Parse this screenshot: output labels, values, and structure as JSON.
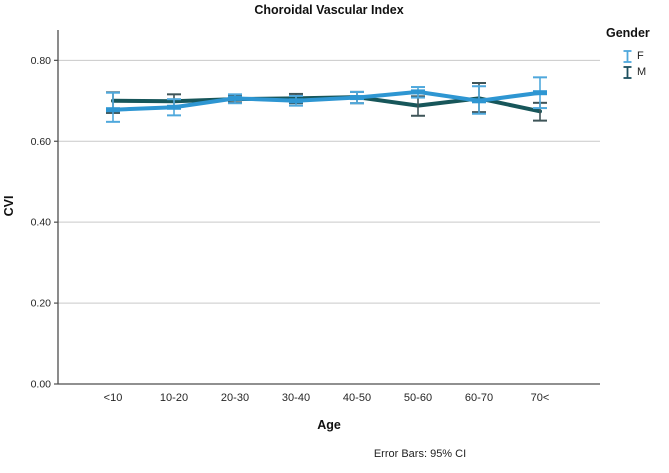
{
  "title": "Choroidal Vascular Index",
  "caption": "Error Bars: 95% CI",
  "axes": {
    "y_label": "CVI",
    "x_label": "Age",
    "y_tick_labels": [
      "0.00",
      "0.20",
      "0.40",
      "0.60",
      "0.80"
    ]
  },
  "legend": {
    "title": "Gender",
    "entries": [
      {
        "label": "F",
        "color": "#4FA8DC"
      },
      {
        "label": "M",
        "color": "#1C4F5E"
      }
    ]
  },
  "colors": {
    "f_line": "#2E96D2",
    "f_error": "#4FA8DC",
    "m_line": "#17565A",
    "m_error": "#3E5458",
    "gridline": "#c9c9c9",
    "axis": "#4d4d4d",
    "tick_text": "#262626"
  },
  "chart_data": {
    "type": "line",
    "title": "Choroidal Vascular Index",
    "xlabel": "Age",
    "ylabel": "CVI",
    "categories": [
      "<10",
      "10-20",
      "20-30",
      "30-40",
      "40-50",
      "50-60",
      "60-70",
      "70<"
    ],
    "ylim": [
      0,
      0.875
    ],
    "y_ticks": [
      0,
      0.2,
      0.4,
      0.6,
      0.8
    ],
    "grid": "horizontal",
    "legend_position": "right",
    "error_bars": "95% CI",
    "series": [
      {
        "name": "M",
        "color": "#17565A",
        "error_color": "#3E5458",
        "values": [
          0.7,
          0.699,
          0.704,
          0.706,
          0.709,
          0.688,
          0.706,
          0.674
        ],
        "ci_low": [
          0.67,
          0.681,
          0.696,
          0.694,
          0.694,
          0.663,
          0.672,
          0.651
        ],
        "ci_high": [
          0.721,
          0.716,
          0.713,
          0.717,
          0.722,
          0.711,
          0.744,
          0.695
        ]
      },
      {
        "name": "F",
        "color": "#2E96D2",
        "error_color": "#4FA8DC",
        "values": [
          0.678,
          0.684,
          0.706,
          0.7,
          0.708,
          0.722,
          0.7,
          0.72
        ],
        "ci_low": [
          0.648,
          0.664,
          0.694,
          0.688,
          0.694,
          0.708,
          0.668,
          0.682
        ],
        "ci_high": [
          0.72,
          0.704,
          0.716,
          0.712,
          0.722,
          0.734,
          0.736,
          0.758
        ]
      }
    ]
  }
}
